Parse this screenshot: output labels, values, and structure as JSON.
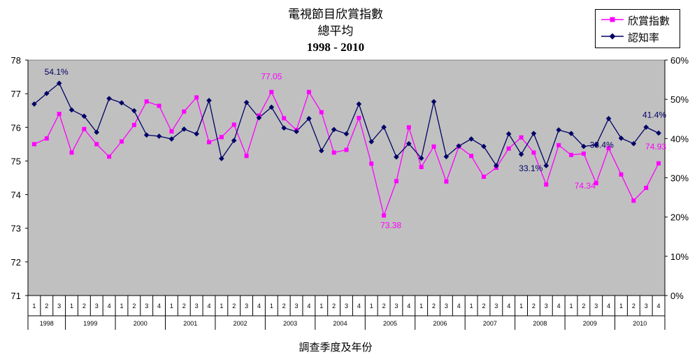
{
  "title": {
    "line1": "電視節目欣賞指數",
    "line2": "總平均",
    "line3": "1998 - 2010"
  },
  "legend": {
    "items": [
      "欣賞指數",
      "認知率"
    ]
  },
  "xaxis_title": "調查季度及年份",
  "colors": {
    "appreciation": "#FF00FF",
    "awareness": "#000066",
    "plot_bg": "#C0C0C0"
  },
  "chart_data": {
    "type": "line",
    "title": "電視節目欣賞指數 總平均 1998 - 2010",
    "xlabel": "調查季度及年份",
    "categories_quarter": [
      "1",
      "2",
      "3",
      "1",
      "2",
      "3",
      "4",
      "1",
      "2",
      "3",
      "4",
      "1",
      "2",
      "3",
      "4",
      "1",
      "2",
      "3",
      "4",
      "1",
      "2",
      "3",
      "4",
      "1",
      "2",
      "3",
      "4",
      "1",
      "2",
      "3",
      "4",
      "1",
      "2",
      "3",
      "4",
      "1",
      "2",
      "3",
      "4",
      "1",
      "2",
      "3",
      "4",
      "1",
      "2",
      "3",
      "4",
      "1",
      "2",
      "3",
      "4"
    ],
    "year_groups": [
      {
        "year": "1998",
        "count": 3
      },
      {
        "year": "1999",
        "count": 4
      },
      {
        "year": "2000",
        "count": 4
      },
      {
        "year": "2001",
        "count": 4
      },
      {
        "year": "2002",
        "count": 4
      },
      {
        "year": "2003",
        "count": 4
      },
      {
        "year": "2004",
        "count": 4
      },
      {
        "year": "2005",
        "count": 4
      },
      {
        "year": "2006",
        "count": 4
      },
      {
        "year": "2007",
        "count": 4
      },
      {
        "year": "2008",
        "count": 4
      },
      {
        "year": "2009",
        "count": 4
      },
      {
        "year": "2010",
        "count": 4
      }
    ],
    "y_left": {
      "min": 71,
      "max": 78,
      "ticks": [
        "71",
        "72",
        "73",
        "74",
        "75",
        "76",
        "77",
        "78"
      ]
    },
    "y_right": {
      "min": 0,
      "max": 60,
      "ticks": [
        "0%",
        "10%",
        "20%",
        "30%",
        "40%",
        "50%",
        "60%"
      ]
    },
    "series": [
      {
        "name": "欣賞指數",
        "axis": "left",
        "values": [
          75.5,
          75.67,
          76.4,
          75.25,
          75.95,
          75.5,
          75.13,
          75.58,
          76.07,
          76.77,
          76.64,
          75.88,
          76.47,
          76.89,
          75.56,
          75.71,
          76.08,
          75.15,
          76.35,
          77.05,
          76.27,
          75.92,
          77.05,
          76.45,
          75.25,
          75.33,
          76.28,
          74.92,
          73.38,
          74.4,
          76.0,
          74.82,
          75.43,
          74.39,
          75.43,
          75.15,
          74.53,
          74.8,
          75.37,
          75.7,
          75.25,
          74.3,
          75.47,
          75.18,
          75.22,
          74.34,
          75.38,
          74.6,
          73.82,
          74.2,
          74.93
        ]
      },
      {
        "name": "認知率",
        "axis": "right",
        "values": [
          48.8,
          51.5,
          54.1,
          47.3,
          45.7,
          41.6,
          50.2,
          49.1,
          47.1,
          40.9,
          40.6,
          39.9,
          42.4,
          41.2,
          49.7,
          34.9,
          39.5,
          49.2,
          45.3,
          48.0,
          42.7,
          41.8,
          45.1,
          36.9,
          42.3,
          41.2,
          48.8,
          39.2,
          42.9,
          35.3,
          38.7,
          35.0,
          49.4,
          35.4,
          38.1,
          39.9,
          38.0,
          33.1,
          41.2,
          36.0,
          41.3,
          33.1,
          42.2,
          41.3,
          38.0,
          38.4,
          45.1,
          40.1,
          38.7,
          42.9,
          41.4
        ]
      }
    ],
    "annotations": [
      {
        "text": "54.1%",
        "series": "認知率",
        "index": 2
      },
      {
        "text": "77.05",
        "series": "欣賞指數",
        "index": 19
      },
      {
        "text": "73.38",
        "series": "欣賞指數",
        "index": 28
      },
      {
        "text": "33.1%",
        "series": "認知率",
        "index": 41
      },
      {
        "text": "38.4%",
        "series": "認知率",
        "index": 45
      },
      {
        "text": "74.34",
        "series": "欣賞指數",
        "index": 45
      },
      {
        "text": "41.4%",
        "series": "認知率",
        "index": 50
      },
      {
        "text": "74.93",
        "series": "欣賞指數",
        "index": 50
      }
    ],
    "grid": false,
    "legend_position": "top-right"
  }
}
